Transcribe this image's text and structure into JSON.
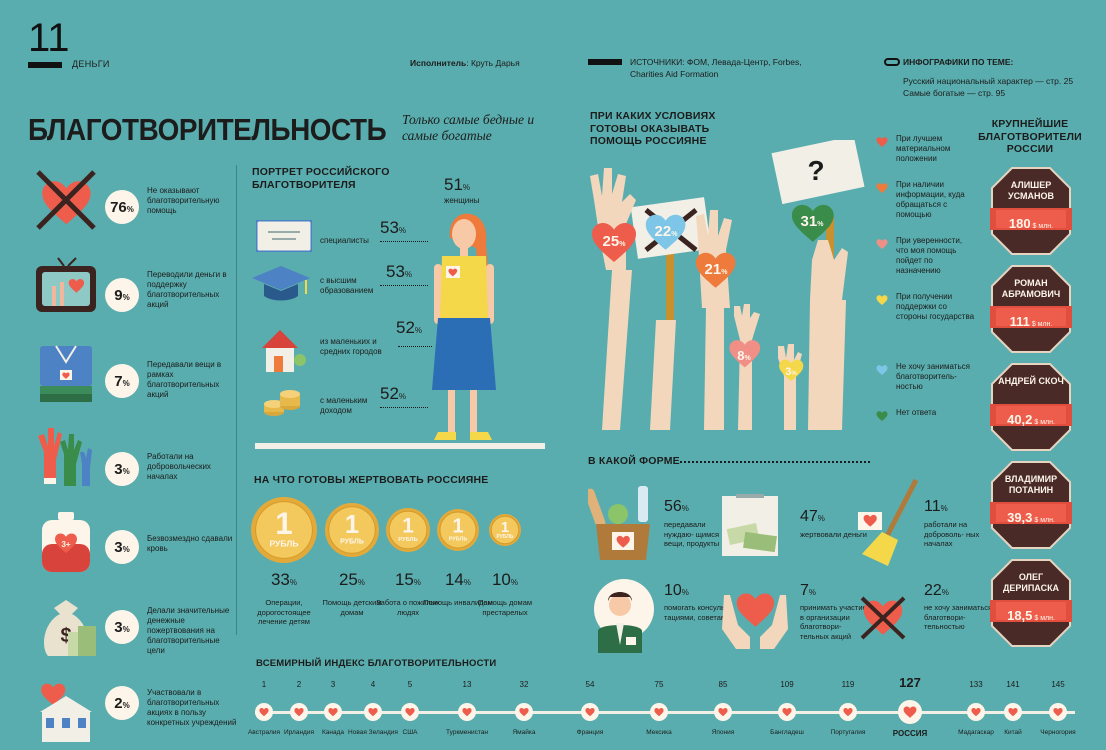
{
  "header": {
    "page_number": "11",
    "section": "ДЕНЬГИ",
    "author_label": "Исполнитель",
    "author_name": ": Круть Дарья",
    "sources": "ИСТОЧНИКИ: ФОМ, Левада-Центр, Forbes, Charities Aid Formation",
    "related_title": "ИНФОГРАФИКИ ПО ТЕМЕ:",
    "related_1": "Русский национальный характер — стр. 25",
    "related_2": "Самые богатые — стр. 95"
  },
  "title": "БЛАГОТВОРИТЕЛЬНОСТЬ",
  "subtitle": "Только самые бедные и самые богатые",
  "left_stats": [
    {
      "value": "76",
      "unit": "%",
      "text": "Не оказывают благотворительную помощь",
      "icon": "crossed-heart-icon"
    },
    {
      "value": "9",
      "unit": "%",
      "text": "Переводили деньги в поддержку благотворительных акций",
      "icon": "tv-donation-icon"
    },
    {
      "value": "7",
      "unit": "%",
      "text": "Передавали вещи в рамках благотворительных акций",
      "icon": "clothes-icon"
    },
    {
      "value": "3",
      "unit": "%",
      "text": "Работали на добровольческих началах",
      "icon": "raised-hands-icon"
    },
    {
      "value": "3",
      "unit": "%",
      "text": "Безвозмездно сдавали кровь",
      "icon": "blood-bag-icon"
    },
    {
      "value": "3",
      "unit": "%",
      "text": "Делали значительные денежные пожертвования на благотворительные цели",
      "icon": "money-bag-icon"
    },
    {
      "value": "2",
      "unit": "%",
      "text": "Участвовали в благотворительных акциях в пользу конкретных учреждений",
      "icon": "building-heart-icon"
    }
  ],
  "portrait": {
    "heading": "ПОРТРЕТ РОССИЙСКОГО БЛАГОТВОРИТЕЛЯ",
    "women_value": "51",
    "women_unit": "%",
    "women_label": "женщины",
    "items": [
      {
        "label": "специалисты",
        "value": "53",
        "unit": "%"
      },
      {
        "label": "с высшим образованием",
        "value": "53",
        "unit": "%"
      },
      {
        "label": "из маленьких и средних городов",
        "value": "52",
        "unit": "%"
      },
      {
        "label": "с маленьким доходом",
        "value": "52",
        "unit": "%"
      }
    ]
  },
  "donations": {
    "heading": "НА ЧТО ГОТОВЫ ЖЕРТВОВАТЬ РОССИЯНЕ",
    "coin_label": "РУБЛЬ",
    "coin_value": "1",
    "items": [
      {
        "value": "33",
        "unit": "%",
        "label": "Операции, дорогостоящее лечение детям"
      },
      {
        "value": "25",
        "unit": "%",
        "label": "Помощь детским домам"
      },
      {
        "value": "15",
        "unit": "%",
        "label": "Забота о пожилых людях"
      },
      {
        "value": "14",
        "unit": "%",
        "label": "Помощь инвалидам"
      },
      {
        "value": "10",
        "unit": "%",
        "label": "Помощь домам престарелых"
      }
    ]
  },
  "conditions": {
    "heading": "ПРИ КАКИХ УСЛОВИЯХ ГОТОВЫ ОКАЗЫВАТЬ ПОМОЩЬ РОССИЯНЕ",
    "sign_mark": "?",
    "values": [
      {
        "value": "25",
        "unit": "%",
        "color": "#ee5d4b"
      },
      {
        "value": "22",
        "unit": "%",
        "color": "#7dc6e8"
      },
      {
        "value": "21",
        "unit": "%",
        "color": "#ee7a3b"
      },
      {
        "value": "8",
        "unit": "%",
        "color": "#f08f86"
      },
      {
        "value": "3",
        "unit": "%",
        "color": "#f5d84a"
      },
      {
        "value": "31",
        "unit": "%",
        "color": "#3a8c4a"
      }
    ],
    "legend": [
      {
        "text": "При лучшем материальном положении",
        "color": "#ee5d4b"
      },
      {
        "text": "При наличии информации, куда обращаться с помощью",
        "color": "#ee7a3b"
      },
      {
        "text": "При уверенности, что моя помощь пойдет по назначению",
        "color": "#f08f86"
      },
      {
        "text": "При получении поддержки со стороны государства",
        "color": "#f5d84a"
      },
      {
        "text": "Не хочу заниматься благотворитель- ностью",
        "color": "#7dc6e8"
      },
      {
        "text": "Нет ответа",
        "color": "#3a8c4a"
      }
    ]
  },
  "forms": {
    "heading": "В КАКОЙ ФОРМЕ",
    "items": [
      {
        "value": "56",
        "unit": "%",
        "text": "передавали нуждаю- щимся вещи, продукты"
      },
      {
        "value": "47",
        "unit": "%",
        "text": "жертвовали деньги"
      },
      {
        "value": "11",
        "unit": "%",
        "text": "работали на доброволь- ных началах"
      },
      {
        "value": "10",
        "unit": "%",
        "text": "помогать консуль- тациями, советами"
      },
      {
        "value": "7",
        "unit": "%",
        "text": "принимать участие в организации благотвори- тельных акций"
      },
      {
        "value": "22",
        "unit": "%",
        "text": "не хочу заниматься благотвори- тельностью"
      }
    ]
  },
  "donors": {
    "heading": "КРУПНЕЙШИЕ БЛАГОТВОРИТЕЛИ РОССИИ",
    "items": [
      {
        "name": "АЛИШЕР УСМАНОВ",
        "amount": "180",
        "unit": "$ млн."
      },
      {
        "name": "РОМАН АБРАМОВИЧ",
        "amount": "111",
        "unit": "$ млн."
      },
      {
        "name": "АНДРЕЙ СКОЧ",
        "amount": "40,2",
        "unit": "$ млн."
      },
      {
        "name": "ВЛАДИМИР ПОТАНИН",
        "amount": "39,3",
        "unit": "$ млн."
      },
      {
        "name": "ОЛЕГ ДЕРИПАСКА",
        "amount": "18,5",
        "unit": "$ млн."
      }
    ]
  },
  "index": {
    "heading": "ВСЕМИРНЫЙ ИНДЕКС БЛАГОТВОРИТЕЛЬНОСТИ",
    "items": [
      {
        "rank": "1",
        "country": "Австралия"
      },
      {
        "rank": "2",
        "country": "Ирландия"
      },
      {
        "rank": "3",
        "country": "Канада"
      },
      {
        "rank": "4",
        "country": "Новая Зеландия"
      },
      {
        "rank": "5",
        "country": "США"
      },
      {
        "rank": "13",
        "country": "Туркменистан"
      },
      {
        "rank": "32",
        "country": "Ямайка"
      },
      {
        "rank": "54",
        "country": "Франция"
      },
      {
        "rank": "75",
        "country": "Мексика"
      },
      {
        "rank": "85",
        "country": "Япония"
      },
      {
        "rank": "109",
        "country": "Бангладеш"
      },
      {
        "rank": "119",
        "country": "Португалия"
      },
      {
        "rank": "127",
        "country": "РОССИЯ"
      },
      {
        "rank": "133",
        "country": "Мадагаскар"
      },
      {
        "rank": "141",
        "country": "Китай"
      },
      {
        "rank": "145",
        "country": "Черногория"
      }
    ]
  },
  "colors": {
    "background": "#5aadae",
    "heart": "#ee5d4b",
    "donor_badge": "#4a2a26",
    "donor_ribbon": "#e24e3d"
  }
}
